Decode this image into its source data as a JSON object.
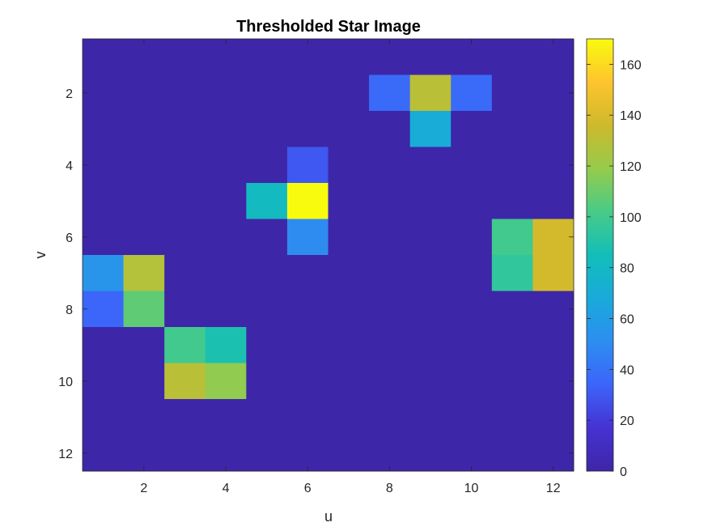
{
  "chart_data": {
    "type": "heatmap",
    "title": "Thresholded Star Image",
    "xlabel": "u",
    "ylabel": "v",
    "xlim": [
      0.5,
      12.5
    ],
    "ylim": [
      0.5,
      12.5
    ],
    "y_reversed": true,
    "xticks": [
      2,
      4,
      6,
      8,
      10,
      12
    ],
    "yticks": [
      2,
      4,
      6,
      8,
      10,
      12
    ],
    "grid": false,
    "colormap": "parula",
    "colorbar": {
      "range": [
        0,
        170
      ],
      "ticks": [
        0,
        20,
        40,
        60,
        80,
        100,
        120,
        140,
        160
      ],
      "placement": "right"
    },
    "matrix": [
      [
        0,
        0,
        0,
        0,
        0,
        0,
        0,
        0,
        0,
        0,
        0,
        0
      ],
      [
        0,
        0,
        0,
        0,
        0,
        0,
        0,
        37,
        130,
        37,
        0,
        0
      ],
      [
        0,
        0,
        0,
        0,
        0,
        0,
        0,
        0,
        70,
        0,
        0,
        0
      ],
      [
        0,
        0,
        0,
        0,
        0,
        30,
        0,
        0,
        0,
        0,
        0,
        0
      ],
      [
        0,
        0,
        0,
        0,
        82,
        170,
        0,
        0,
        0,
        0,
        0,
        0
      ],
      [
        0,
        0,
        0,
        0,
        0,
        50,
        0,
        0,
        0,
        0,
        100,
        138
      ],
      [
        55,
        128,
        0,
        0,
        0,
        0,
        0,
        0,
        0,
        0,
        95,
        138
      ],
      [
        35,
        107,
        0,
        0,
        0,
        0,
        0,
        0,
        0,
        0,
        0,
        0
      ],
      [
        0,
        0,
        100,
        88,
        0,
        0,
        0,
        0,
        0,
        0,
        0,
        0
      ],
      [
        0,
        0,
        130,
        118,
        0,
        0,
        0,
        0,
        0,
        0,
        0,
        0
      ],
      [
        0,
        0,
        0,
        0,
        0,
        0,
        0,
        0,
        0,
        0,
        0,
        0
      ],
      [
        0,
        0,
        0,
        0,
        0,
        0,
        0,
        0,
        0,
        0,
        0,
        0
      ]
    ]
  }
}
